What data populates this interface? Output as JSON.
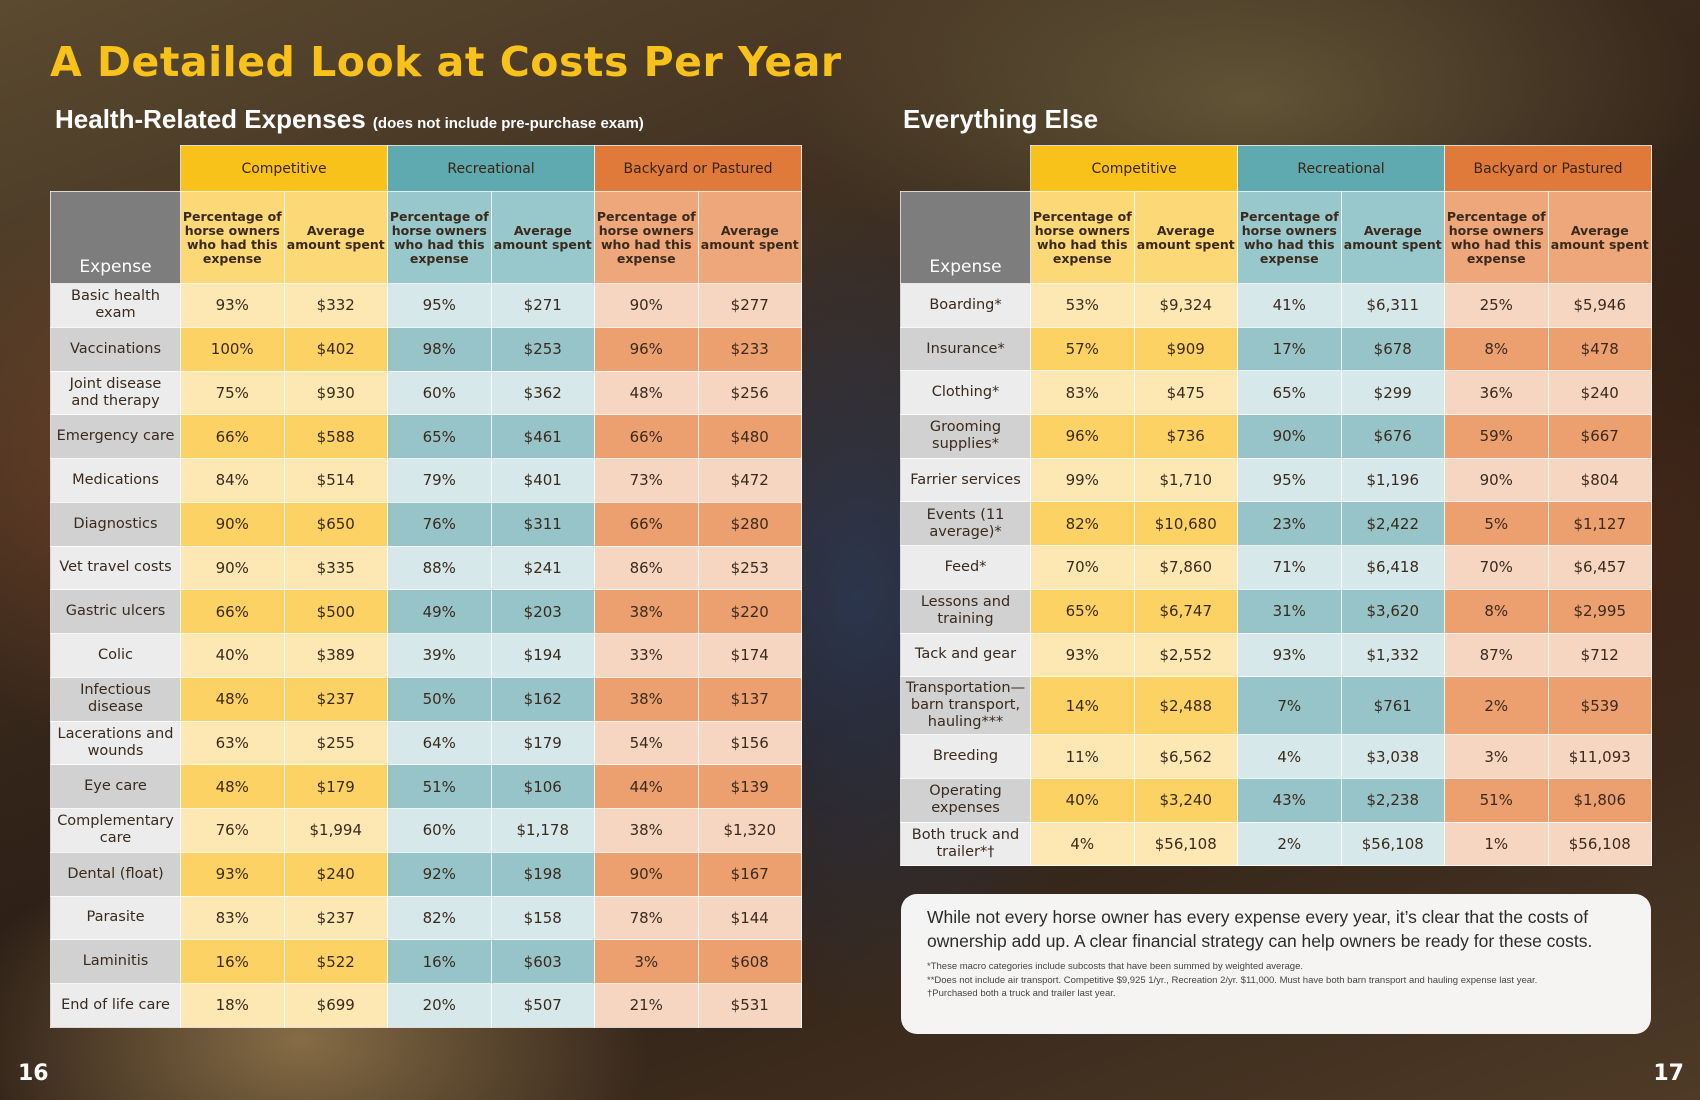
{
  "title": "A Detailed Look at Costs Per Year",
  "left": {
    "heading": "Health-Related Expenses",
    "note": "(does not include pre-purchase exam)",
    "table": {
      "groups": [
        "Competitive",
        "Recreational",
        "Backyard or Pastured"
      ],
      "expense_header": "Expense",
      "pct_header": "Percentage of horse owners who had this expense",
      "avg_header": "Average amount spent",
      "rows": [
        {
          "label": "Basic health exam",
          "values": [
            "93%",
            "$332",
            "95%",
            "$271",
            "90%",
            "$277"
          ]
        },
        {
          "label": "Vaccinations",
          "values": [
            "100%",
            "$402",
            "98%",
            "$253",
            "96%",
            "$233"
          ]
        },
        {
          "label": "Joint disease and therapy",
          "values": [
            "75%",
            "$930",
            "60%",
            "$362",
            "48%",
            "$256"
          ]
        },
        {
          "label": "Emergency care",
          "values": [
            "66%",
            "$588",
            "65%",
            "$461",
            "66%",
            "$480"
          ]
        },
        {
          "label": "Medications",
          "values": [
            "84%",
            "$514",
            "79%",
            "$401",
            "73%",
            "$472"
          ]
        },
        {
          "label": "Diagnostics",
          "values": [
            "90%",
            "$650",
            "76%",
            "$311",
            "66%",
            "$280"
          ]
        },
        {
          "label": "Vet travel costs",
          "values": [
            "90%",
            "$335",
            "88%",
            "$241",
            "86%",
            "$253"
          ]
        },
        {
          "label": "Gastric ulcers",
          "values": [
            "66%",
            "$500",
            "49%",
            "$203",
            "38%",
            "$220"
          ]
        },
        {
          "label": "Colic",
          "values": [
            "40%",
            "$389",
            "39%",
            "$194",
            "33%",
            "$174"
          ]
        },
        {
          "label": "Infectious disease",
          "values": [
            "48%",
            "$237",
            "50%",
            "$162",
            "38%",
            "$137"
          ]
        },
        {
          "label": "Lacerations and wounds",
          "values": [
            "63%",
            "$255",
            "64%",
            "$179",
            "54%",
            "$156"
          ]
        },
        {
          "label": "Eye care",
          "values": [
            "48%",
            "$179",
            "51%",
            "$106",
            "44%",
            "$139"
          ]
        },
        {
          "label": "Complementary care",
          "values": [
            "76%",
            "$1,994",
            "60%",
            "$1,178",
            "38%",
            "$1,320"
          ]
        },
        {
          "label": "Dental (float)",
          "values": [
            "93%",
            "$240",
            "92%",
            "$198",
            "90%",
            "$167"
          ]
        },
        {
          "label": "Parasite",
          "values": [
            "83%",
            "$237",
            "82%",
            "$158",
            "78%",
            "$144"
          ]
        },
        {
          "label": "Laminitis",
          "values": [
            "16%",
            "$522",
            "16%",
            "$603",
            "3%",
            "$608"
          ]
        },
        {
          "label": "End of life care",
          "values": [
            "18%",
            "$699",
            "20%",
            "$507",
            "21%",
            "$531"
          ]
        }
      ]
    }
  },
  "right": {
    "heading": "Everything Else",
    "table": {
      "groups": [
        "Competitive",
        "Recreational",
        "Backyard or Pastured"
      ],
      "expense_header": "Expense",
      "pct_header": "Percentage of horse owners who had this expense",
      "avg_header": "Average amount spent",
      "rows": [
        {
          "label": "Boarding*",
          "values": [
            "53%",
            "$9,324",
            "41%",
            "$6,311",
            "25%",
            "$5,946"
          ]
        },
        {
          "label": "Insurance*",
          "values": [
            "57%",
            "$909",
            "17%",
            "$678",
            "8%",
            "$478"
          ]
        },
        {
          "label": "Clothing*",
          "values": [
            "83%",
            "$475",
            "65%",
            "$299",
            "36%",
            "$240"
          ]
        },
        {
          "label": "Grooming supplies*",
          "values": [
            "96%",
            "$736",
            "90%",
            "$676",
            "59%",
            "$667"
          ]
        },
        {
          "label": "Farrier services",
          "values": [
            "99%",
            "$1,710",
            "95%",
            "$1,196",
            "90%",
            "$804"
          ]
        },
        {
          "label": "Events (11 average)*",
          "values": [
            "82%",
            "$10,680",
            "23%",
            "$2,422",
            "5%",
            "$1,127"
          ]
        },
        {
          "label": "Feed*",
          "values": [
            "70%",
            "$7,860",
            "71%",
            "$6,418",
            "70%",
            "$6,457"
          ]
        },
        {
          "label": "Lessons and training",
          "values": [
            "65%",
            "$6,747",
            "31%",
            "$3,620",
            "8%",
            "$2,995"
          ]
        },
        {
          "label": "Tack and gear",
          "values": [
            "93%",
            "$2,552",
            "93%",
            "$1,332",
            "87%",
            "$712"
          ]
        },
        {
          "label": "Transportation—barn transport, hauling***",
          "values": [
            "14%",
            "$2,488",
            "7%",
            "$761",
            "2%",
            "$539"
          ]
        },
        {
          "label": "Breeding",
          "values": [
            "11%",
            "$6,562",
            "4%",
            "$3,038",
            "3%",
            "$11,093"
          ]
        },
        {
          "label": "Operating expenses",
          "values": [
            "40%",
            "$3,240",
            "43%",
            "$2,238",
            "51%",
            "$1,806"
          ]
        },
        {
          "label": "Both truck and trailer*†",
          "values": [
            "4%",
            "$56,108",
            "2%",
            "$56,108",
            "1%",
            "$56,108"
          ]
        }
      ]
    }
  },
  "summary": {
    "text": "While not every horse owner has every expense every year, it’s clear that the costs of ownership add up. A clear financial strategy can help owners be ready for these costs.",
    "footnotes": [
      "*These macro categories include subcosts that have been summed by weighted average.",
      "**Does not include air transport. Competitive $9,925 1/yr., Recreation 2/yr. $11,000. Must have both barn transport and hauling expense last year.",
      "†Purchased both a truck and trailer last year."
    ]
  },
  "page_numbers": {
    "left": "16",
    "right": "17"
  },
  "colors": {
    "title": "#f8c21a",
    "competitive": "#f8c21a",
    "recreational": "#5fa9b1",
    "backyard": "#e07a3b",
    "expense_header": "#7d7d7d"
  }
}
